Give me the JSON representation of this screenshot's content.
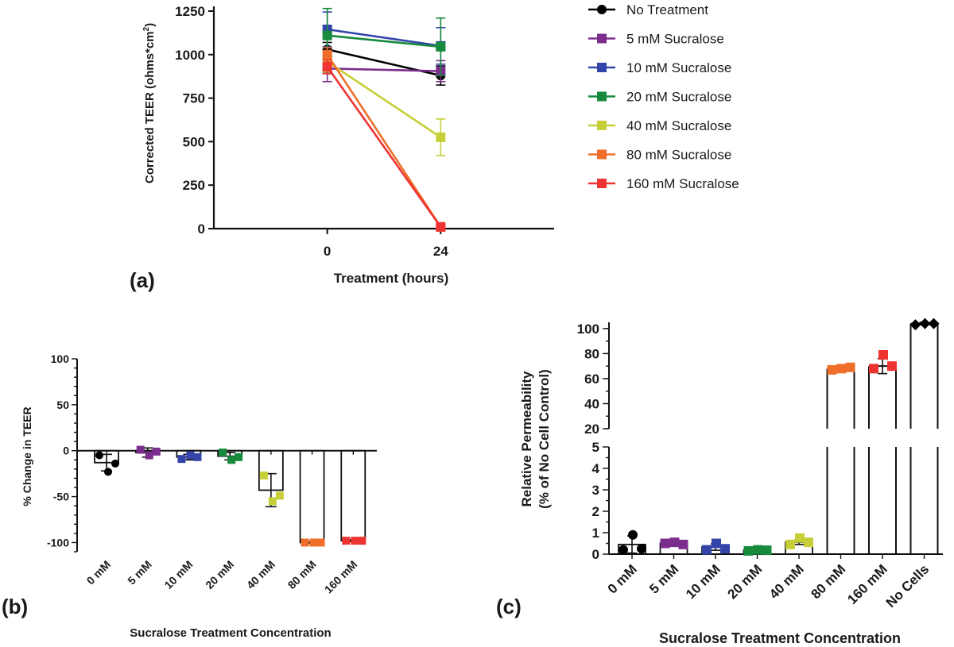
{
  "panels": {
    "a": {
      "tag": "(a)"
    },
    "b": {
      "tag": "(b)"
    },
    "c": {
      "tag": "(c)"
    }
  },
  "chart_data": [
    {
      "id": "a",
      "type": "line",
      "xlabel": "Treatment (hours)",
      "ylabel_main": "Corrected TEER (ohms*cm",
      "ylabel_sup": "2",
      "ylabel_tail": ")",
      "x": [
        0,
        24
      ],
      "xticks": [
        "0",
        "24"
      ],
      "xlim": [
        -24,
        48
      ],
      "ylim": [
        0,
        1250
      ],
      "yticks": [
        0,
        250,
        500,
        750,
        1000,
        1250
      ],
      "legend_position": "right",
      "series": [
        {
          "name": "No Treatment",
          "marker": "circle",
          "color": "#000000",
          "values": [
            1030,
            880
          ],
          "err": [
            40,
            55
          ]
        },
        {
          "name": "5 mM Sucralose",
          "marker": "square",
          "color": "#7b2d8e",
          "values": [
            920,
            905
          ],
          "err": [
            75,
            60
          ]
        },
        {
          "name": "10 mM Sucralose",
          "marker": "square",
          "color": "#3344aa",
          "values": [
            1145,
            1050
          ],
          "err": [
            100,
            105
          ]
        },
        {
          "name": "20 mM Sucralose",
          "marker": "square",
          "color": "#178a3c",
          "values": [
            1110,
            1045
          ],
          "err": [
            155,
            165
          ]
        },
        {
          "name": "40 mM Sucralose",
          "marker": "square",
          "color": "#c6cf37",
          "values": [
            960,
            525
          ],
          "err": [
            60,
            105
          ]
        },
        {
          "name": "80 mM Sucralose",
          "marker": "square",
          "color": "#ef6f2a",
          "values": [
            1000,
            10
          ],
          "err": [
            40,
            10
          ]
        },
        {
          "name": "160 mM Sucralose",
          "marker": "square",
          "color": "#ee3333",
          "values": [
            930,
            10
          ],
          "err": [
            40,
            10
          ]
        }
      ]
    },
    {
      "id": "b",
      "type": "bar",
      "xlabel": "Sucralose Treatment Concentration",
      "ylabel": "% Change in TEER",
      "ylim": [
        -110,
        100
      ],
      "yticks": [
        -100,
        -50,
        0,
        50,
        100
      ],
      "categories": [
        "0 mM",
        "5 mM",
        "10 mM",
        "20 mM",
        "40 mM",
        "80 mM",
        "160 mM"
      ],
      "colors": [
        "#000000",
        "#7b2d8e",
        "#3344aa",
        "#178a3c",
        "#c6cf37",
        "#ef6f2a",
        "#ee3333"
      ],
      "markers": [
        "circle",
        "square",
        "square",
        "square",
        "square",
        "square",
        "square"
      ],
      "values": [
        -13,
        -2,
        -7,
        -6,
        -43,
        -100,
        -98
      ],
      "err": [
        9,
        5,
        3,
        4,
        18,
        1,
        1
      ],
      "points": [
        [
          -5,
          -23,
          -14
        ],
        [
          1,
          -5,
          -1
        ],
        [
          -9,
          -5,
          -7
        ],
        [
          -2,
          -10,
          -7
        ],
        [
          -27,
          -55,
          -49
        ],
        [
          -100,
          -100,
          -100
        ],
        [
          -98,
          -98,
          -98
        ]
      ]
    },
    {
      "id": "c",
      "type": "bar",
      "xlabel": "Sucralose Treatment Concentration",
      "ylabel_line1": "Relative Permeability",
      "ylabel_line2": "(% of No Cell Control)",
      "broken_axis": {
        "lower": [
          0,
          5
        ],
        "upper": [
          20,
          105
        ]
      },
      "yticks_lower": [
        0,
        1,
        2,
        3,
        4,
        5
      ],
      "yticks_upper": [
        20,
        40,
        60,
        80,
        100
      ],
      "categories": [
        "0 mM",
        "5 mM",
        "10 mM",
        "20 mM",
        "40 mM",
        "80 mM",
        "160 mM",
        "No Cells"
      ],
      "colors": [
        "#000000",
        "#7b2d8e",
        "#3344aa",
        "#178a3c",
        "#c6cf37",
        "#ef6f2a",
        "#ee3333",
        "#000000"
      ],
      "markers": [
        "circle",
        "square",
        "square",
        "square",
        "square",
        "square",
        "square",
        "diamond"
      ],
      "values": [
        0.45,
        0.5,
        0.33,
        0.18,
        0.55,
        68,
        70,
        104
      ],
      "err": [
        0.4,
        0.05,
        0.15,
        0.03,
        0.1,
        1,
        6,
        1
      ],
      "points": [
        [
          0.2,
          0.9,
          0.25
        ],
        [
          0.5,
          0.55,
          0.45
        ],
        [
          0.2,
          0.5,
          0.25
        ],
        [
          0.15,
          0.2,
          0.18
        ],
        [
          0.45,
          0.75,
          0.55
        ],
        [
          67,
          68,
          69
        ],
        [
          68,
          79,
          70
        ],
        [
          103,
          104,
          104
        ]
      ]
    }
  ]
}
